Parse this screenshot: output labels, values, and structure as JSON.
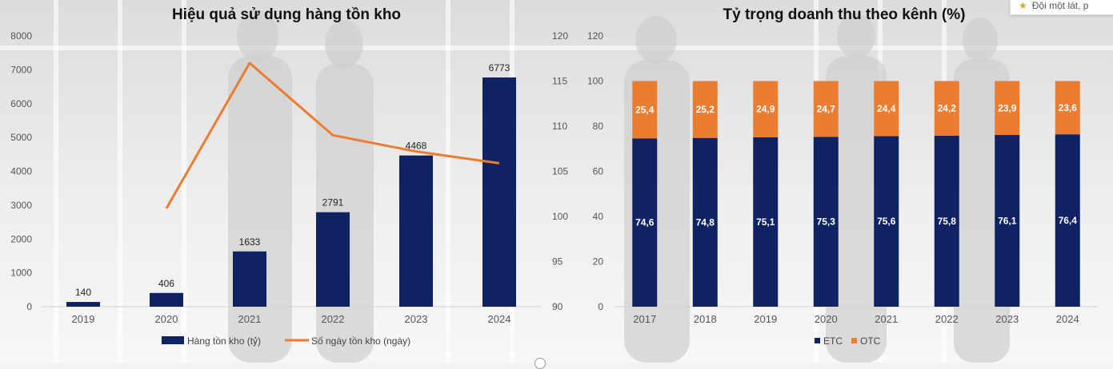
{
  "colors": {
    "navy": "#0f2263",
    "orange": "#ec7c30",
    "line": "#ec7c30"
  },
  "popup": {
    "icon": "star-icon",
    "text": "Đội một lát, p"
  },
  "chart_data": [
    {
      "type": "bar",
      "title": "Hiệu quả sử dụng hàng tồn kho",
      "categories": [
        "2019",
        "2020",
        "2021",
        "2022",
        "2023",
        "2024"
      ],
      "ylim": [
        0,
        8000
      ],
      "yticks": [
        0,
        1000,
        2000,
        3000,
        4000,
        5000,
        6000,
        7000,
        8000
      ],
      "y2lim": [
        90,
        120
      ],
      "y2ticks": [
        90,
        95,
        100,
        105,
        110,
        115,
        120
      ],
      "series": [
        {
          "name": "Hàng tồn kho (tỷ)",
          "kind": "bar",
          "axis": "left",
          "color": "#0f2263",
          "values": [
            140,
            406,
            1633,
            2791,
            4468,
            6773
          ]
        },
        {
          "name": "Số ngày tồn kho (ngày)",
          "kind": "line",
          "axis": "right",
          "color": "#ec7c30",
          "values": [
            null,
            100.9,
            117.0,
            109.0,
            107.2,
            105.9
          ]
        }
      ],
      "grid": false,
      "legend_position": "bottom"
    },
    {
      "type": "bar",
      "stacked": true,
      "title": "Tỷ trọng doanh thu theo kênh (%)",
      "categories": [
        "2017",
        "2018",
        "2019",
        "2020",
        "2021",
        "2022",
        "2023",
        "2024"
      ],
      "ylim": [
        0,
        120
      ],
      "yticks": [
        0,
        20,
        40,
        60,
        80,
        100,
        120
      ],
      "series": [
        {
          "name": "ETC",
          "color": "#0f2263",
          "values": [
            74.6,
            74.8,
            75.1,
            75.3,
            75.6,
            75.8,
            76.1,
            76.4
          ],
          "labels": [
            "74,6",
            "74,8",
            "75,1",
            "75,3",
            "75,6",
            "75,8",
            "76,1",
            "76,4"
          ]
        },
        {
          "name": "OTC",
          "color": "#ec7c30",
          "values": [
            25.4,
            25.2,
            24.9,
            24.7,
            24.4,
            24.2,
            23.9,
            23.6
          ],
          "labels": [
            "25,4",
            "25,2",
            "24,9",
            "24,7",
            "24,4",
            "24,2",
            "23,9",
            "23,6"
          ]
        }
      ],
      "grid": false,
      "legend_position": "bottom"
    }
  ]
}
